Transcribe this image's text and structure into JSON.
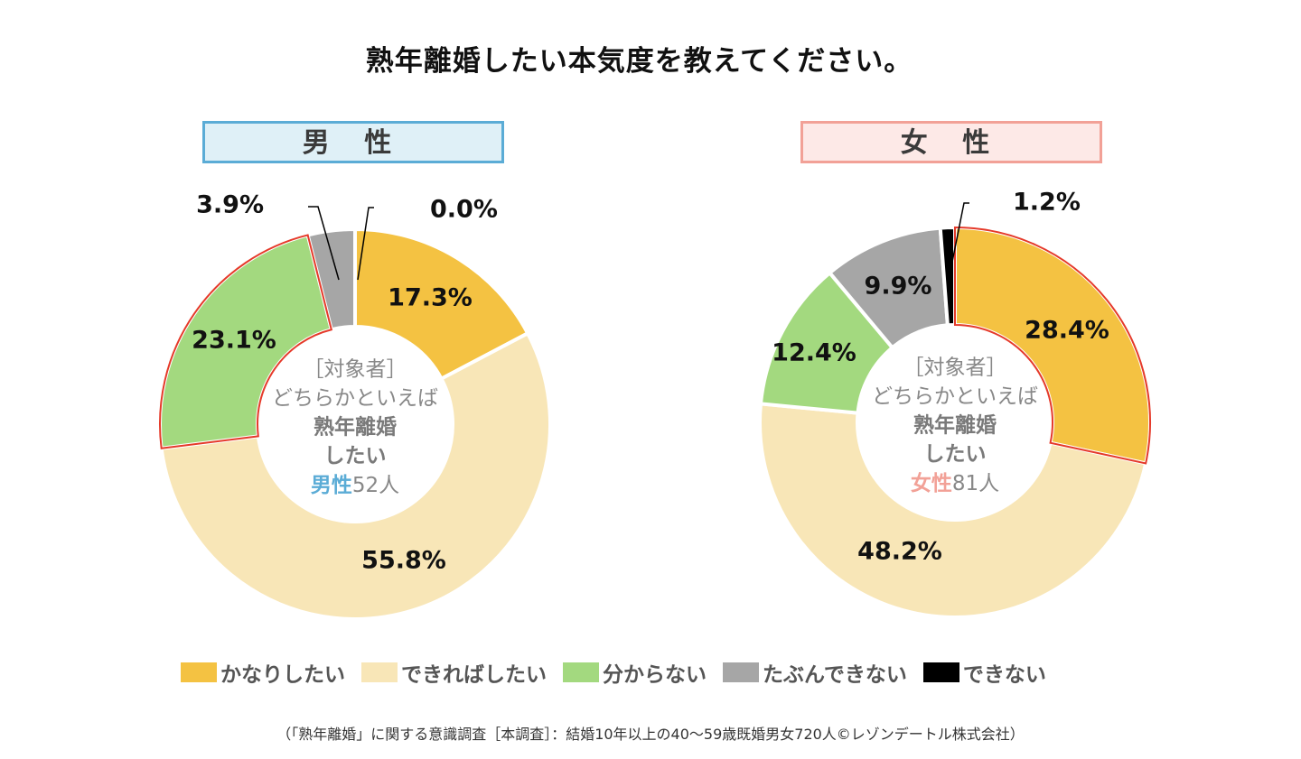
{
  "title": "熟年離婚したい本気度を教えてください。",
  "categories": [
    "かなりしたい",
    "できればしたい",
    "分からない",
    "たぶんできない",
    "できない"
  ],
  "colors": [
    "#f4c242",
    "#f8e6b7",
    "#a3d97f",
    "#a6a6a6",
    "#000000"
  ],
  "highlight_color": "#e53a2a",
  "chart_data": [
    {
      "type": "pie",
      "variant": "donut",
      "title": "男 性",
      "accent": "#5bacd6",
      "categories": [
        "かなりしたい",
        "できればしたい",
        "分からない",
        "たぶんできない",
        "できない"
      ],
      "values": [
        17.3,
        55.8,
        23.1,
        3.9,
        0.0
      ],
      "labels": [
        "17.3%",
        "55.8%",
        "23.1%",
        "3.9%",
        "0.0%"
      ],
      "highlighted": "分からない",
      "center": {
        "line1": "［対象者］",
        "line2": "どちらかといえば",
        "line3": "熟年離婚",
        "line4": "したい",
        "gender": "男性",
        "count": "52人"
      }
    },
    {
      "type": "pie",
      "variant": "donut",
      "title": "女 性",
      "accent": "#f2a197",
      "categories": [
        "かなりしたい",
        "できればしたい",
        "分からない",
        "たぶんできない",
        "できない"
      ],
      "values": [
        28.4,
        48.2,
        12.4,
        9.9,
        1.2
      ],
      "labels": [
        "28.4%",
        "48.2%",
        "12.4%",
        "9.9%",
        "1.2%"
      ],
      "highlighted": "かなりしたい",
      "center": {
        "line1": "［対象者］",
        "line2": "どちらかといえば",
        "line3": "熟年離婚",
        "line4": "したい",
        "gender": "女性",
        "count": "81人"
      }
    }
  ],
  "legend_placement": "bottom",
  "source": "（「熟年離婚」に関する意識調査［本調査］：結婚10年以上の40～59歳既婚男女720人©レゾンデートル株式会社）"
}
